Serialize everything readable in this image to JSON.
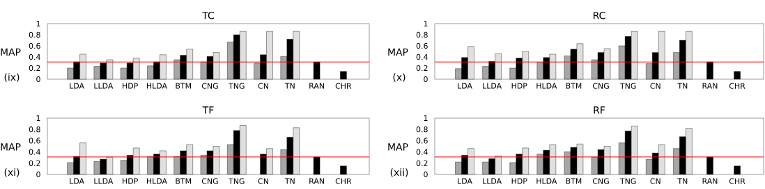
{
  "chart_data": [
    {
      "type": "bar",
      "title": "TC",
      "ylabel": "MAP",
      "annotations": [
        "(ix)"
      ],
      "categories": [
        "LDA",
        "LLDA",
        "HDP",
        "HLDA",
        "BTM",
        "CNG",
        "TNG",
        "CN",
        "TN",
        "RAN",
        "CHR"
      ],
      "series": [
        {
          "color": "#a6a6a6",
          "values": [
            0.2,
            0.23,
            0.2,
            0.24,
            0.35,
            0.31,
            0.67,
            0.29,
            0.41,
            null,
            null
          ]
        },
        {
          "color": "#000000",
          "values": [
            0.31,
            0.29,
            0.29,
            0.31,
            0.43,
            0.41,
            0.8,
            0.44,
            0.72,
            0.31,
            0.14
          ]
        },
        {
          "color": "#e0e0e0",
          "values": [
            0.45,
            0.35,
            0.38,
            0.44,
            0.54,
            0.48,
            0.86,
            0.86,
            0.86,
            null,
            null
          ]
        }
      ],
      "ylim": [
        0,
        1
      ],
      "yticks": [
        0,
        0.2,
        0.4,
        0.6,
        0.8,
        1
      ],
      "ref_lines": [
        {
          "axis": "y",
          "value": 0.31,
          "color": "#ff0000"
        }
      ]
    },
    {
      "type": "bar",
      "title": "RC",
      "ylabel": "MAP",
      "annotations": [
        "(x)"
      ],
      "categories": [
        "LDA",
        "LLDA",
        "HDP",
        "HLDA",
        "BTM",
        "CNG",
        "TNG",
        "CN",
        "TN",
        "RAN",
        "CHR"
      ],
      "series": [
        {
          "color": "#a6a6a6",
          "values": [
            0.19,
            0.23,
            0.2,
            0.3,
            0.42,
            0.35,
            0.6,
            0.28,
            0.48,
            null,
            null
          ]
        },
        {
          "color": "#000000",
          "values": [
            0.39,
            0.32,
            0.38,
            0.39,
            0.54,
            0.48,
            0.77,
            0.48,
            0.7,
            0.31,
            0.14
          ]
        },
        {
          "color": "#e0e0e0",
          "values": [
            0.59,
            0.46,
            0.5,
            0.45,
            0.64,
            0.55,
            0.86,
            0.86,
            0.86,
            null,
            null
          ]
        }
      ],
      "ylim": [
        0,
        1
      ],
      "yticks": [
        0,
        0.2,
        0.4,
        0.6,
        0.8,
        1
      ],
      "ref_lines": [
        {
          "axis": "y",
          "value": 0.31,
          "color": "#ff0000"
        }
      ]
    },
    {
      "type": "bar",
      "title": "TF",
      "ylabel": "MAP",
      "annotations": [
        "(xi)"
      ],
      "categories": [
        "LDA",
        "LLDA",
        "HDP",
        "HLDA",
        "BTM",
        "CNG",
        "TNG",
        "CN",
        "TN",
        "RAN",
        "CHR"
      ],
      "series": [
        {
          "color": "#a6a6a6",
          "values": [
            0.21,
            0.23,
            0.25,
            0.32,
            0.32,
            0.34,
            0.53,
            null,
            0.44,
            null,
            null
          ]
        },
        {
          "color": "#000000",
          "values": [
            0.32,
            0.27,
            0.34,
            0.36,
            0.42,
            0.42,
            0.78,
            0.36,
            0.66,
            0.31,
            0.15
          ]
        },
        {
          "color": "#e0e0e0",
          "values": [
            0.56,
            0.31,
            0.47,
            0.42,
            0.53,
            0.5,
            0.87,
            0.46,
            0.83,
            null,
            null
          ]
        }
      ],
      "ylim": [
        0,
        1
      ],
      "yticks": [
        0,
        0.2,
        0.4,
        0.6,
        0.8,
        1
      ],
      "ref_lines": [
        {
          "axis": "y",
          "value": 0.31,
          "color": "#ff0000"
        }
      ]
    },
    {
      "type": "bar",
      "title": "RF",
      "ylabel": "MAP",
      "annotations": [
        "(xii)"
      ],
      "categories": [
        "LDA",
        "LLDA",
        "HDP",
        "HLDA",
        "BTM",
        "CNG",
        "TNG",
        "CN",
        "TN",
        "RAN",
        "CHR"
      ],
      "series": [
        {
          "color": "#a6a6a6",
          "values": [
            0.22,
            0.22,
            0.21,
            0.36,
            0.4,
            0.31,
            0.56,
            0.27,
            0.46,
            null,
            null
          ]
        },
        {
          "color": "#000000",
          "values": [
            0.34,
            0.28,
            0.36,
            0.43,
            0.48,
            0.44,
            0.77,
            0.38,
            0.67,
            0.31,
            0.15
          ]
        },
        {
          "color": "#e0e0e0",
          "values": [
            0.46,
            0.33,
            0.47,
            0.53,
            0.54,
            0.5,
            0.86,
            0.53,
            0.82,
            null,
            null
          ]
        }
      ],
      "ylim": [
        0,
        1
      ],
      "yticks": [
        0,
        0.2,
        0.4,
        0.6,
        0.8,
        1
      ],
      "ref_lines": [
        {
          "axis": "y",
          "value": 0.31,
          "color": "#ff0000"
        }
      ]
    }
  ]
}
